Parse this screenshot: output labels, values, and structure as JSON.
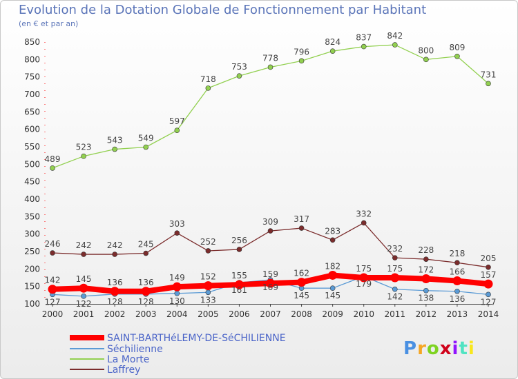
{
  "title": "Evolution de la Dotation Globale de Fonctionnement par Habitant",
  "subtitle": "(en € et par an)",
  "logo": {
    "text": "Proxiti",
    "colors": [
      "#4a90e2",
      "#f5a623",
      "#7ed321",
      "#d0021b",
      "#9013fe",
      "#50e3c2",
      "#f8e71c"
    ]
  },
  "chart_data": {
    "type": "line",
    "title": "Evolution de la Dotation Globale de Fonctionnement par Habitant",
    "subtitle": "(en € et par an)",
    "xlabel": "",
    "ylabel": "",
    "x": [
      "2000",
      "2001",
      "2002",
      "2003",
      "2004",
      "2005",
      "2006",
      "2007",
      "2008",
      "2009",
      "2010",
      "2011",
      "2012",
      "2013",
      "2014"
    ],
    "ylim": [
      100,
      850
    ],
    "yticks": [
      100,
      150,
      200,
      250,
      300,
      350,
      400,
      450,
      500,
      550,
      600,
      650,
      700,
      750,
      800,
      850
    ],
    "grid": false,
    "legend_position": "bottom-left",
    "series": [
      {
        "name": "SAINT-BARTHéLEMY-DE-SéCHILIENNE",
        "color": "#ff0000",
        "values": [
          142,
          145,
          136,
          136,
          149,
          152,
          155,
          159,
          162,
          182,
          175,
          175,
          172,
          166,
          157
        ]
      },
      {
        "name": "Séchilienne",
        "color": "#5b9bd5",
        "values": [
          127,
          122,
          128,
          128,
          130,
          133,
          161,
          169,
          145,
          145,
          179,
          142,
          138,
          136,
          127
        ]
      },
      {
        "name": "La Morte",
        "color": "#92d050",
        "values": [
          489,
          523,
          543,
          549,
          597,
          718,
          753,
          778,
          796,
          824,
          837,
          842,
          800,
          809,
          731
        ]
      },
      {
        "name": "Laffrey",
        "color": "#7b2c2c",
        "values": [
          246,
          242,
          242,
          245,
          303,
          252,
          256,
          309,
          317,
          283,
          332,
          232,
          228,
          218,
          205
        ]
      }
    ]
  }
}
